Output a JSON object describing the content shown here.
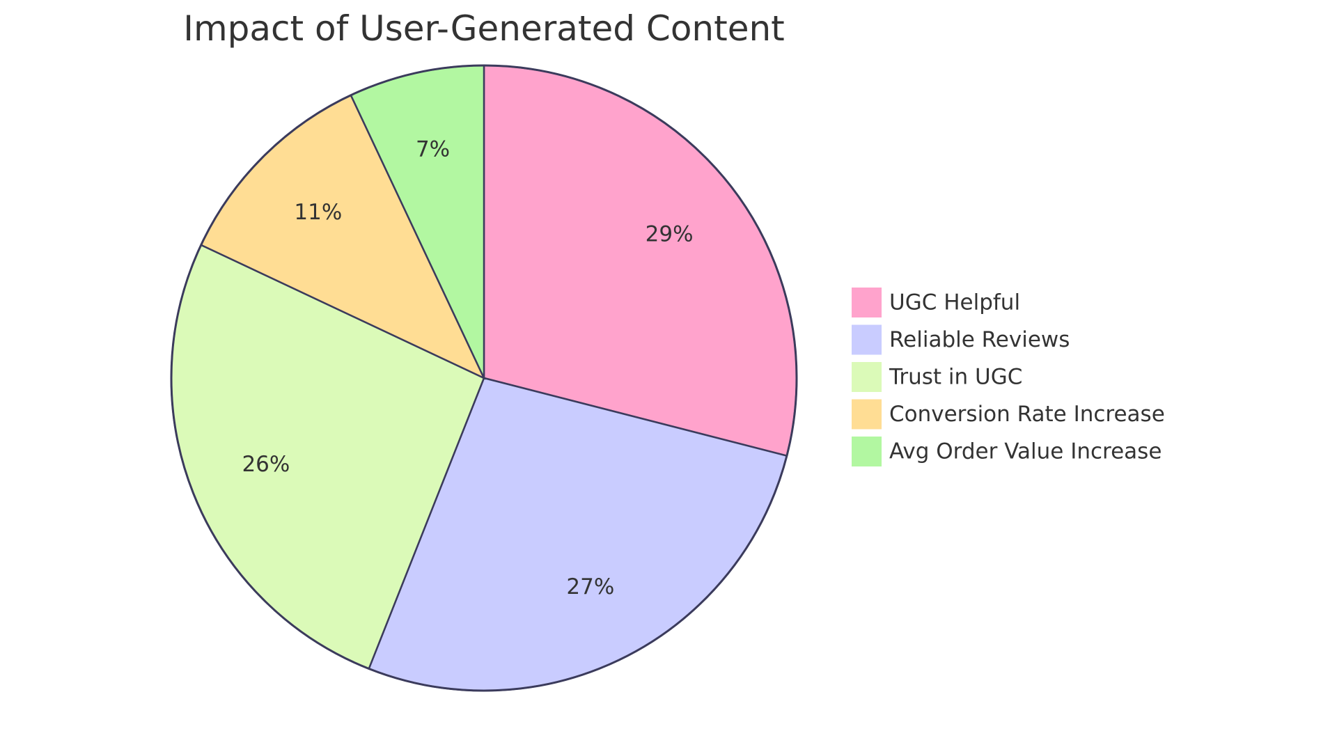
{
  "chart_data": {
    "type": "pie",
    "title": "Impact of User-Generated Content",
    "slices": [
      {
        "name": "UGC Helpful",
        "value": 29,
        "label": "29%",
        "color": "#ffa3cc"
      },
      {
        "name": "Reliable Reviews",
        "value": 27,
        "label": "27%",
        "color": "#c9ccff"
      },
      {
        "name": "Trust in UGC",
        "value": 26,
        "label": "26%",
        "color": "#dbfab8"
      },
      {
        "name": "Conversion Rate Increase",
        "value": 11,
        "label": "11%",
        "color": "#ffdd94"
      },
      {
        "name": "Avg Order Value Increase",
        "value": 7,
        "label": "7%",
        "color": "#b2f7a1"
      }
    ],
    "legend_position": "right",
    "start_angle": "top",
    "direction": "clockwise"
  }
}
